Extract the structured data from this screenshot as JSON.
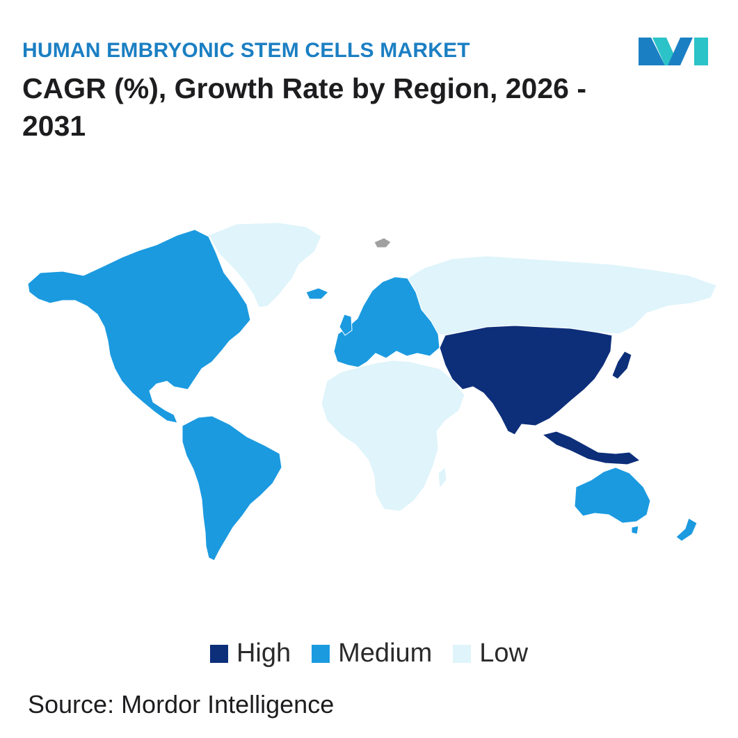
{
  "header": {
    "eyebrow": "HUMAN EMBRYONIC STEM CELLS MARKET",
    "title": "CAGR (%), Growth Rate by Region, 2026 - 2031"
  },
  "logo": {
    "icon": "mordor-intelligence-logo-icon",
    "colors": [
      "#1b7fc3",
      "#2bc3c8"
    ]
  },
  "map": {
    "levels": {
      "high": "#0d2f7a",
      "medium": "#1b9ae0",
      "low": "#dff4fb",
      "no_data": "#a0a0a0"
    },
    "regions": [
      {
        "name": "North America",
        "level": "medium"
      },
      {
        "name": "South America",
        "level": "medium"
      },
      {
        "name": "Europe",
        "level": "medium"
      },
      {
        "name": "Asia-Pacific",
        "level": "high"
      },
      {
        "name": "Australia and New Zealand",
        "level": "medium"
      },
      {
        "name": "Middle East and Africa",
        "level": "low"
      },
      {
        "name": "Russia",
        "level": "low"
      },
      {
        "name": "Greenland",
        "level": "low"
      }
    ]
  },
  "legend": {
    "items": [
      {
        "label": "High",
        "color": "#0d2f7a"
      },
      {
        "label": "Medium",
        "color": "#1b9ae0"
      },
      {
        "label": "Low",
        "color": "#dff4fb"
      }
    ]
  },
  "footer": {
    "source": "Source: Mordor Intelligence"
  }
}
